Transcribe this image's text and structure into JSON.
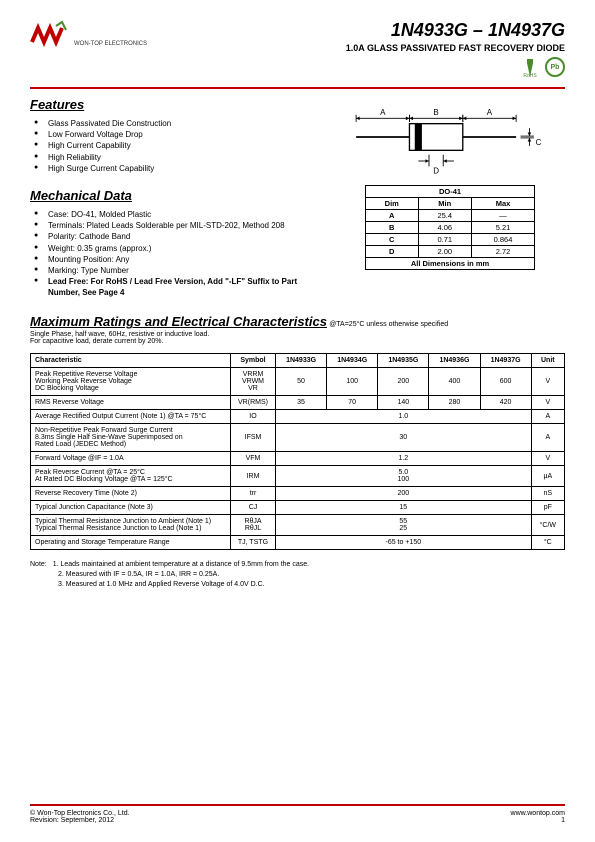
{
  "header": {
    "company": "WON-TOP ELECTRONICS",
    "part_title": "1N4933G – 1N4937G",
    "subtitle": "1.0A GLASS PASSIVATED FAST RECOVERY DIODE",
    "rohs_label": "RoHS",
    "pb_label": "Pb"
  },
  "features": {
    "title": "Features",
    "items": [
      "Glass Passivated Die Construction",
      "Low Forward Voltage Drop",
      "High Current Capability",
      "High Reliability",
      "High Surge Current Capability"
    ]
  },
  "mechanical": {
    "title": "Mechanical Data",
    "items": [
      "Case: DO-41, Molded Plastic",
      "Terminals: Plated Leads Solderable per MIL-STD-202, Method 208",
      "Polarity: Cathode Band",
      "Weight: 0.35 grams (approx.)",
      "Mounting Position: Any",
      "Marking: Type Number",
      "Lead Free: For RoHS / Lead Free Version, Add \"-LF\" Suffix to Part Number, See Page 4"
    ]
  },
  "diagram": {
    "labels": {
      "A": "A",
      "B": "B",
      "C": "C",
      "D": "D"
    }
  },
  "dim_table": {
    "caption": "DO-41",
    "headers": [
      "Dim",
      "Min",
      "Max"
    ],
    "rows": [
      [
        "A",
        "25.4",
        "—"
      ],
      [
        "B",
        "4.06",
        "5.21"
      ],
      [
        "C",
        "0.71",
        "0.864"
      ],
      [
        "D",
        "2.00",
        "2.72"
      ]
    ],
    "footer": "All Dimensions in mm"
  },
  "ratings": {
    "title": "Maximum Ratings and Electrical Characteristics",
    "condition": "@TA=25°C unless otherwise specified",
    "note1": "Single Phase, half wave, 60Hz, resistive or inductive load.",
    "note2": "For capacitive load, derate current by 20%.",
    "headers": [
      "Characteristic",
      "Symbol",
      "1N4933G",
      "1N4934G",
      "1N4935G",
      "1N4936G",
      "1N4937G",
      "Unit"
    ],
    "rows": [
      {
        "char": "Peak Repetitive Reverse Voltage\nWorking Peak Reverse Voltage\nDC Blocking Voltage",
        "symbol": "VRRM\nVRWM\nVR",
        "vals": [
          "50",
          "100",
          "200",
          "400",
          "600"
        ],
        "unit": "V"
      },
      {
        "char": "RMS Reverse Voltage",
        "symbol": "VR(RMS)",
        "vals": [
          "35",
          "70",
          "140",
          "280",
          "420"
        ],
        "unit": "V"
      },
      {
        "char": "Average Rectified Output Current (Note 1)    @TA = 75°C",
        "symbol": "IO",
        "span": "1.0",
        "unit": "A"
      },
      {
        "char": "Non-Repetitive Peak Forward Surge Current\n8.3ms Single Half Sine-Wave Superimposed on\nRated Load (JEDEC Method)",
        "symbol": "IFSM",
        "span": "30",
        "unit": "A"
      },
      {
        "char": "Forward Voltage                                    @IF = 1.0A",
        "symbol": "VFM",
        "span": "1.2",
        "unit": "V"
      },
      {
        "char": "Peak Reverse Current                         @TA = 25°C\nAt Rated DC Blocking Voltage            @TA = 125°C",
        "symbol": "IRM",
        "span": "5.0\n100",
        "unit": "μA"
      },
      {
        "char": "Reverse Recovery Time (Note 2)",
        "symbol": "trr",
        "span": "200",
        "unit": "nS"
      },
      {
        "char": "Typical Junction Capacitance (Note 3)",
        "symbol": "CJ",
        "span": "15",
        "unit": "pF"
      },
      {
        "char": "Typical Thermal Resistance Junction to Ambient (Note 1)\nTypical Thermal Resistance Junction to Lead (Note 1)",
        "symbol": "RθJA\nRθJL",
        "span": "55\n25",
        "unit": "°C/W"
      },
      {
        "char": "Operating and Storage Temperature Range",
        "symbol": "TJ, TSTG",
        "span": "-65 to +150",
        "unit": "°C"
      }
    ]
  },
  "notes": {
    "lead": "Note:",
    "items": [
      "1. Leads maintained at ambient temperature at a distance of 9.5mm from the case.",
      "2. Measured with IF = 0.5A, IR = 1.0A, IRR = 0.25A.",
      "3. Measured at 1.0 MHz and Applied Reverse Voltage of 4.0V D.C."
    ]
  },
  "footer": {
    "copyright": "© Won-Top Electronics Co., Ltd.",
    "revision": "Revision: September, 2012",
    "url": "www.wontop.com",
    "page": "1"
  },
  "colors": {
    "accent": "#c00000",
    "green": "#4a8b2c",
    "text": "#000000"
  }
}
